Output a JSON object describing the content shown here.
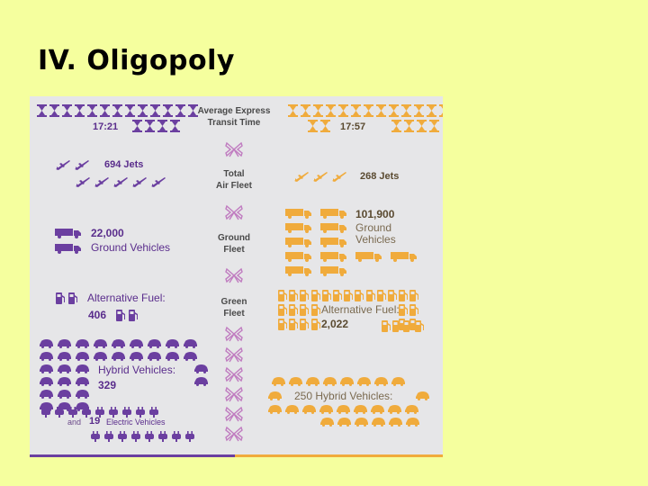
{
  "title": "IV. Oligopoly",
  "colors": {
    "purple": "#6b3fa0",
    "orange": "#f0ab3c",
    "panel": "#e6e6e8",
    "background": "#f5ff9e"
  },
  "icons": {
    "transit": "hourglass-icon",
    "air": "jet-icon",
    "ground": "truck-icon",
    "fuel": "fuel-pump-icon",
    "hybrid": "car-icon",
    "electric": "plug-icon",
    "separator": "bow-icon"
  },
  "center": {
    "transit": "Average Express\nTransit Time",
    "air": "Total\nAir Fleet",
    "ground": "Ground\nFleet",
    "green": "Green\nFleet"
  },
  "left": {
    "transit_time": "17:21",
    "jets": "694 Jets",
    "ground_count": "22,000",
    "ground_label": "Ground Vehicles",
    "alt_fuel_label": "Alternative Fuel:",
    "alt_fuel_count": "406",
    "hybrid_label": "Hybrid Vehicles:",
    "hybrid_count": "329",
    "electric_and": "and",
    "electric_count": "19",
    "electric_label": "Electric Vehicles"
  },
  "right": {
    "transit_time": "17:57",
    "jets": "268 Jets",
    "ground_count": "101,900",
    "ground_label": "Ground\nVehicles",
    "alt_fuel_label": "Alternative Fuel:",
    "alt_fuel_count": "2,022",
    "hybrid_label": "250 Hybrid Vehicles:"
  }
}
